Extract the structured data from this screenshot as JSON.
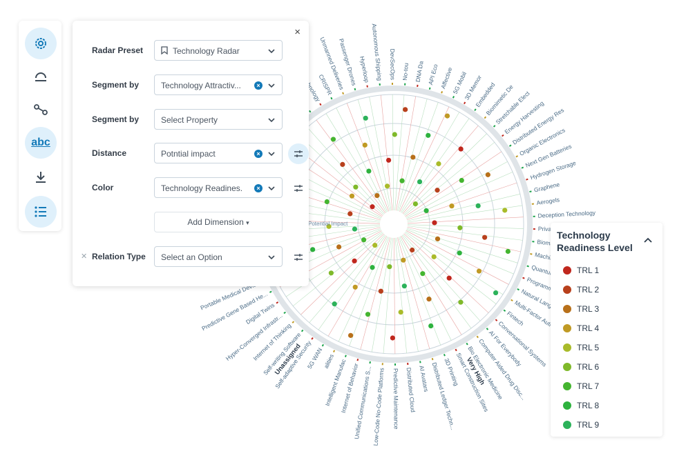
{
  "toolbar": {
    "icons": [
      "settings-icon",
      "arc-icon",
      "connection-icon",
      "abc-icon",
      "download-icon",
      "list-icon"
    ],
    "abc_label": "abc"
  },
  "panel": {
    "close_glyph": "×",
    "rows": [
      {
        "label": "Radar Preset",
        "value": "Technology Radar",
        "clearable": false,
        "tune": false
      },
      {
        "label": "Segment by",
        "value": "Technology Attractiv...",
        "clearable": true,
        "tune": false
      },
      {
        "label": "Segment by",
        "value": "Select  Property",
        "clearable": false,
        "tune": false
      },
      {
        "label": "Distance",
        "value": "Potntial impact",
        "clearable": true,
        "tune": true
      },
      {
        "label": "Color",
        "value": "Technology Readines...",
        "clearable": true,
        "tune": true
      }
    ],
    "add_dimension": "Add Dimension",
    "relation": {
      "label": "Relation Type",
      "placeholder": "Select an Option",
      "remove_glyph": "✕"
    }
  },
  "legend": {
    "title": "Technology Readiness Level",
    "items": [
      {
        "label": "TRL 1",
        "color": "#c0271d"
      },
      {
        "label": "TRL 2",
        "color": "#b8401c"
      },
      {
        "label": "TRL 3",
        "color": "#b8701a"
      },
      {
        "label": "TRL 4",
        "color": "#c09a24"
      },
      {
        "label": "TRL 5",
        "color": "#a9bb2a"
      },
      {
        "label": "TRL 6",
        "color": "#7fb92a"
      },
      {
        "label": "TRL 7",
        "color": "#45b530"
      },
      {
        "label": "TRL 8",
        "color": "#2eb23e"
      },
      {
        "label": "TRL 9",
        "color": "#2cb25a"
      }
    ]
  },
  "radar": {
    "center_label": "Potential Impact",
    "segments": [
      "High",
      "Very High",
      "Unassigned"
    ],
    "segment_colors": {
      "High": "#1aa34a",
      "Very High": "#1aa34a",
      "Unassigned": "#c0271d"
    },
    "technologies": [
      "Advanced Swarm Systems",
      "Eye-tracking Technology",
      "Facial Recognition and B...",
      "Powered Exoskeletons",
      "Smart Clothing Technology",
      "CRISPR",
      "Unmanned Deliveries",
      "Passenger Drones",
      "Hyperloop",
      "Autonomous Shipping",
      "DevSecOps",
      "No-tou",
      "DNA Da",
      "API Eco",
      "Affective",
      "5G Mobil",
      "3D Memor",
      "Embedded",
      "Biomimetic De",
      "Stretchable Elect",
      "Energy Harvesting",
      "Distributed Energy Res",
      "Organic Electronics",
      "Next Gen Batteries",
      "Hydrogen Storage",
      "Graphene",
      "Aerogels",
      "Deception Technology",
      "Privacy Enhancing Techno...",
      "Biomanufacturing",
      "Machine Learning",
      "Quantum Computing",
      "Programmatic Advertising",
      "Natural Language Processing",
      "Multi-Factor Authentication",
      "Fintech",
      "Conversational Systems",
      "AI For Everybody",
      "Computer Aided Drug Disc...",
      "Bio Electronic Medicine",
      "Smart Construction Sites",
      "3D Printing",
      "Distributed Ledger Techn...",
      "AI Avatars",
      "Distributed Cloud",
      "Predictive Maintenance",
      "Low-Code No-Code Platforms",
      "Unified Communications S...",
      "Internet of Behavior",
      "Intelligent Manufac",
      "alities",
      "5G WAN",
      "Self-adaptive Security",
      "Self-writing Software",
      "Internet of Thinking",
      "Hyper-Converged Infrastr...",
      "Digital Twins",
      "Predictive Gene Based He...",
      "Portable Medical Devices",
      "Nanomedicine",
      "3D Bioprinting",
      "Floating Wind Farms",
      "Autonomous Robotic Surgery",
      "Smart Grid",
      "Next-generation PV",
      "Self Healing Materials",
      "Pollution-capturing Devices",
      "Nanomanufacturing",
      "Hydrogen Production",
      "Carbon Capture and Storage"
    ]
  }
}
